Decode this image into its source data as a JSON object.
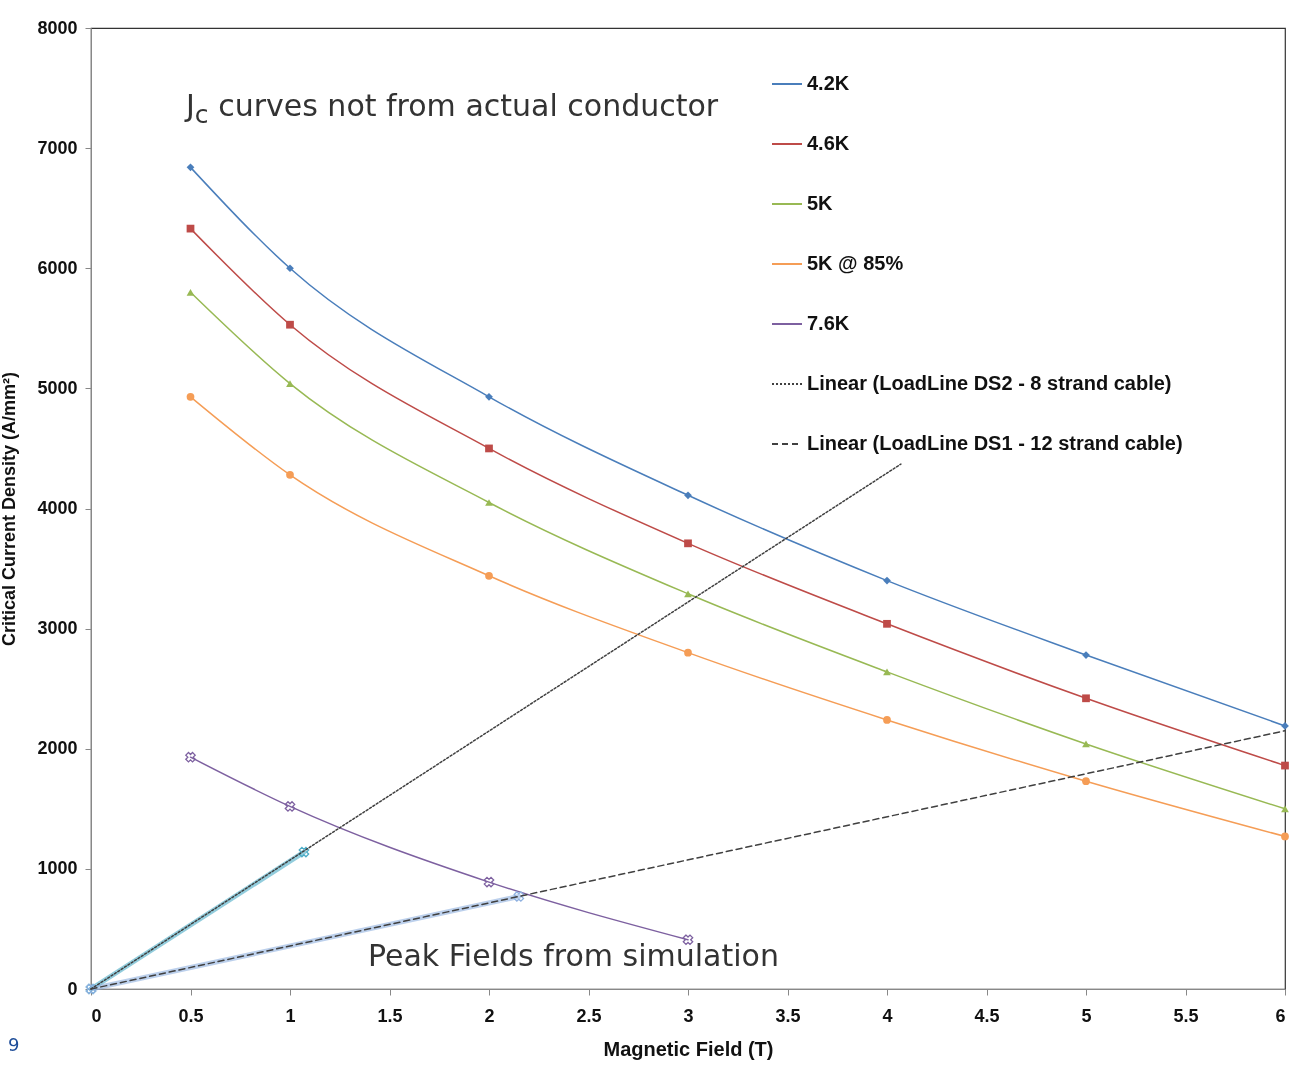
{
  "chart_data": {
    "type": "line",
    "xlabel": "Magnetic Field (T)",
    "ylabel": "Critical Current Density (A/mm²)",
    "xlim": [
      0,
      6
    ],
    "xticks": [
      0,
      0.5,
      1,
      1.5,
      2,
      2.5,
      3,
      3.5,
      4,
      4.5,
      5,
      5.5,
      6
    ],
    "ylim": [
      0,
      8000
    ],
    "yticks": [
      0,
      1000,
      2000,
      3000,
      4000,
      5000,
      6000,
      7000,
      8000
    ],
    "grid": false,
    "legend": "top right",
    "x": [
      0.5,
      1,
      2,
      3,
      4,
      5,
      6
    ],
    "series": [
      {
        "name": "4.2K",
        "color": "#4a7ebb",
        "marker": "diamond",
        "values": [
          6840,
          6000,
          4930,
          4110,
          3400,
          2780,
          2190
        ]
      },
      {
        "name": "4.6K",
        "color": "#be4b48",
        "marker": "square",
        "values": [
          6330,
          5530,
          4500,
          3710,
          3040,
          2420,
          1860
        ]
      },
      {
        "name": "5K",
        "color": "#98b954",
        "marker": "triangle",
        "values": [
          5800,
          5040,
          4050,
          3290,
          2640,
          2040,
          1500
        ]
      },
      {
        "name": "5K @ 85%",
        "color": "#f59d56",
        "marker": "circle",
        "values": [
          4930,
          4280,
          3440,
          2800,
          2240,
          1730,
          1270
        ]
      },
      {
        "name": "7.6K",
        "color": "#7d60a0",
        "marker": "cross",
        "x": [
          0.5,
          1,
          2,
          3
        ],
        "values": [
          1930,
          1520,
          890,
          410
        ]
      },
      {
        "color": "#4bacc6",
        "marker": "cross",
        "x": [
          0,
          1.07
        ],
        "values": [
          0,
          1140
        ]
      },
      {
        "color": "#8fb1e0",
        "marker": "cross",
        "x": [
          0,
          2.15
        ],
        "values": [
          0,
          770
        ]
      },
      {
        "name": "Linear (LoadLine DS2 - 8 strand cable)",
        "color": "#404040",
        "line_style": "dotted",
        "marker": "none",
        "x": [
          0,
          4.07
        ],
        "values": [
          0,
          4370
        ]
      },
      {
        "name": "Linear (LoadLine DS1 - 12 strand cable)",
        "color": "#404040",
        "line_style": "dashed",
        "marker": "none",
        "x": [
          0,
          6
        ],
        "values": [
          0,
          2150
        ]
      }
    ],
    "annotations": [
      "J$_{c}$ curves not from actual conductor",
      "Peak Fields from simulation",
      "9"
    ]
  }
}
